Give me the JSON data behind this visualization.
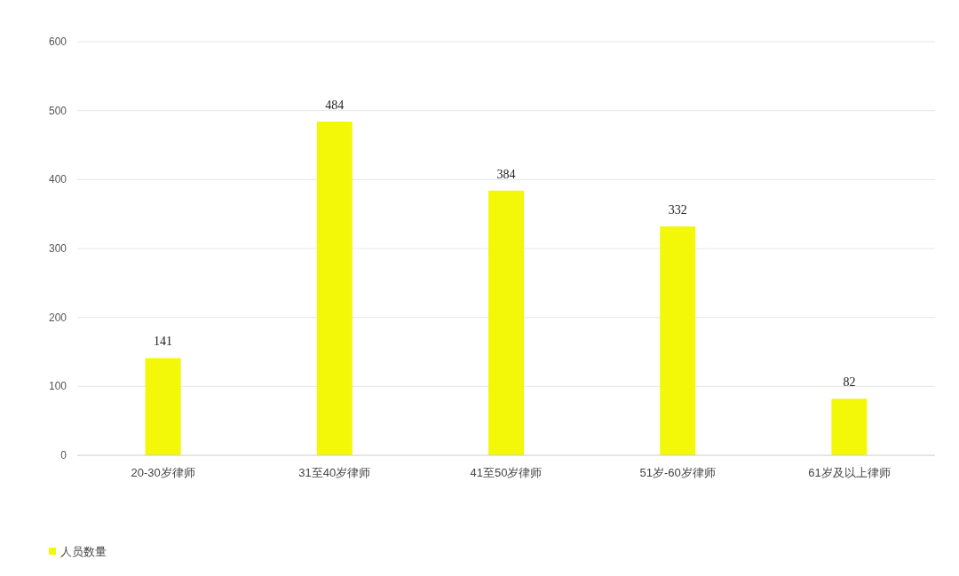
{
  "chart_data": {
    "type": "bar",
    "categories": [
      "20-30岁律师",
      "31至40岁律师",
      "41至50岁律师",
      "51岁-60岁律师",
      "61岁及以上律师"
    ],
    "series": [
      {
        "name": "人员数量",
        "color": "#f3f708",
        "values": [
          141,
          484,
          384,
          332,
          82
        ]
      }
    ],
    "ylim": [
      0,
      600
    ],
    "yticks": [
      0,
      100,
      200,
      300,
      400,
      500,
      600
    ],
    "grid": "y",
    "data_labels": true,
    "legend": "bottom left"
  }
}
